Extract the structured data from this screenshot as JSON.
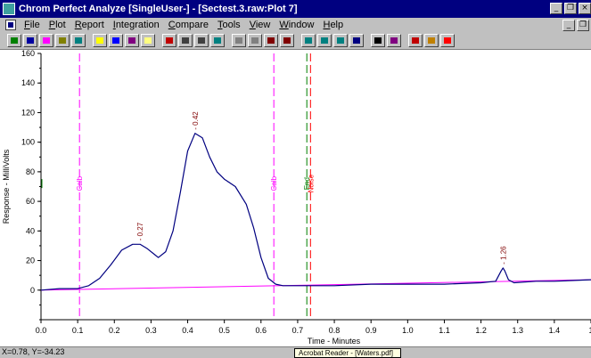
{
  "window": {
    "title": "Chrom Perfect Analyze [SingleUser-] - [Sectest.3.raw:Plot 7]"
  },
  "menu": [
    {
      "underline": "F",
      "rest": "ile"
    },
    {
      "underline": "P",
      "rest": "lot"
    },
    {
      "underline": "R",
      "rest": "eport"
    },
    {
      "underline": "I",
      "rest": "ntegration"
    },
    {
      "underline": "C",
      "rest": "ompare"
    },
    {
      "underline": "T",
      "rest": "ools"
    },
    {
      "underline": "V",
      "rest": "iew"
    },
    {
      "underline": "W",
      "rest": "indow"
    },
    {
      "underline": "H",
      "rest": "elp"
    }
  ],
  "toolbar_icon_colors": [
    "#008000",
    "#0000a0",
    "#ff00ff",
    "#808000",
    "#008080",
    "#ffff00",
    "#0000ff",
    "#800080",
    "#ffff80",
    "#c00000",
    "#404040",
    "#404040",
    "#008080",
    "#808080",
    "#808080",
    "#800000",
    "#800000",
    "#008080",
    "#008080",
    "#008080",
    "#000080",
    "#000000",
    "#800080",
    "#c00000",
    "#c08000",
    "#ff0000"
  ],
  "status": {
    "coords": "X=0.78, Y=-34.23",
    "tip": "Acrobat Reader - [Waters.pdf]"
  },
  "chart_data": {
    "type": "line",
    "xlabel": "Time - Minutes",
    "ylabel": "Response - MilliVolts",
    "xlim": [
      0,
      1.5
    ],
    "ylim": [
      -20,
      160
    ],
    "xticks": [
      "0.0",
      "0.1",
      "0.2",
      "0.3",
      "0.4",
      "0.5",
      "0.6",
      "0.7",
      "0.8",
      "0.9",
      "1.0",
      "1.1",
      "1.2",
      "1.3",
      "1.4",
      "1"
    ],
    "yticks": [
      "0",
      "20",
      "40",
      "60",
      "80",
      "100",
      "120",
      "140",
      "160"
    ],
    "series": [
      {
        "color": "#000080",
        "x": [
          0.0,
          0.05,
          0.1,
          0.13,
          0.16,
          0.19,
          0.22,
          0.25,
          0.27,
          0.29,
          0.31,
          0.32,
          0.34,
          0.36,
          0.38,
          0.4,
          0.42,
          0.44,
          0.46,
          0.48,
          0.5,
          0.53,
          0.56,
          0.58,
          0.6,
          0.62,
          0.64,
          0.66,
          0.7,
          0.8,
          0.9,
          1.0,
          1.1,
          1.2,
          1.24,
          1.255,
          1.26,
          1.265,
          1.275,
          1.29,
          1.35,
          1.4,
          1.5
        ],
        "y": [
          0,
          1,
          1,
          3,
          8,
          17,
          27,
          31,
          31,
          28,
          24,
          22,
          26,
          40,
          66,
          94,
          106,
          103,
          90,
          80,
          75,
          70,
          58,
          42,
          22,
          8,
          4,
          3,
          3,
          3,
          4,
          4,
          4,
          5,
          6,
          13,
          15,
          13,
          7,
          5,
          6,
          6,
          7
        ]
      }
    ],
    "baseline": {
      "color": "#ff00ff",
      "x": [
        0.0,
        1.5
      ],
      "y": [
        0,
        7
      ]
    },
    "peak_labels": [
      {
        "text": "0.27",
        "x": 0.27,
        "y": 31
      },
      {
        "text": "0.42",
        "x": 0.42,
        "y": 106
      },
      {
        "text": "1.26",
        "x": 1.26,
        "y": 15
      }
    ],
    "markers": [
      {
        "text": "Calb",
        "x": 0.105,
        "color": "#ff00ff",
        "dashed": true
      },
      {
        "text": "Calb",
        "x": 0.635,
        "color": "#ff00ff",
        "dashed": true
      },
      {
        "text": "End",
        "x": 0.725,
        "color": "#008000",
        "dashed": true
      },
      {
        "text": "Noise",
        "x": 0.735,
        "color": "#ff0000",
        "dashed": true
      }
    ]
  }
}
